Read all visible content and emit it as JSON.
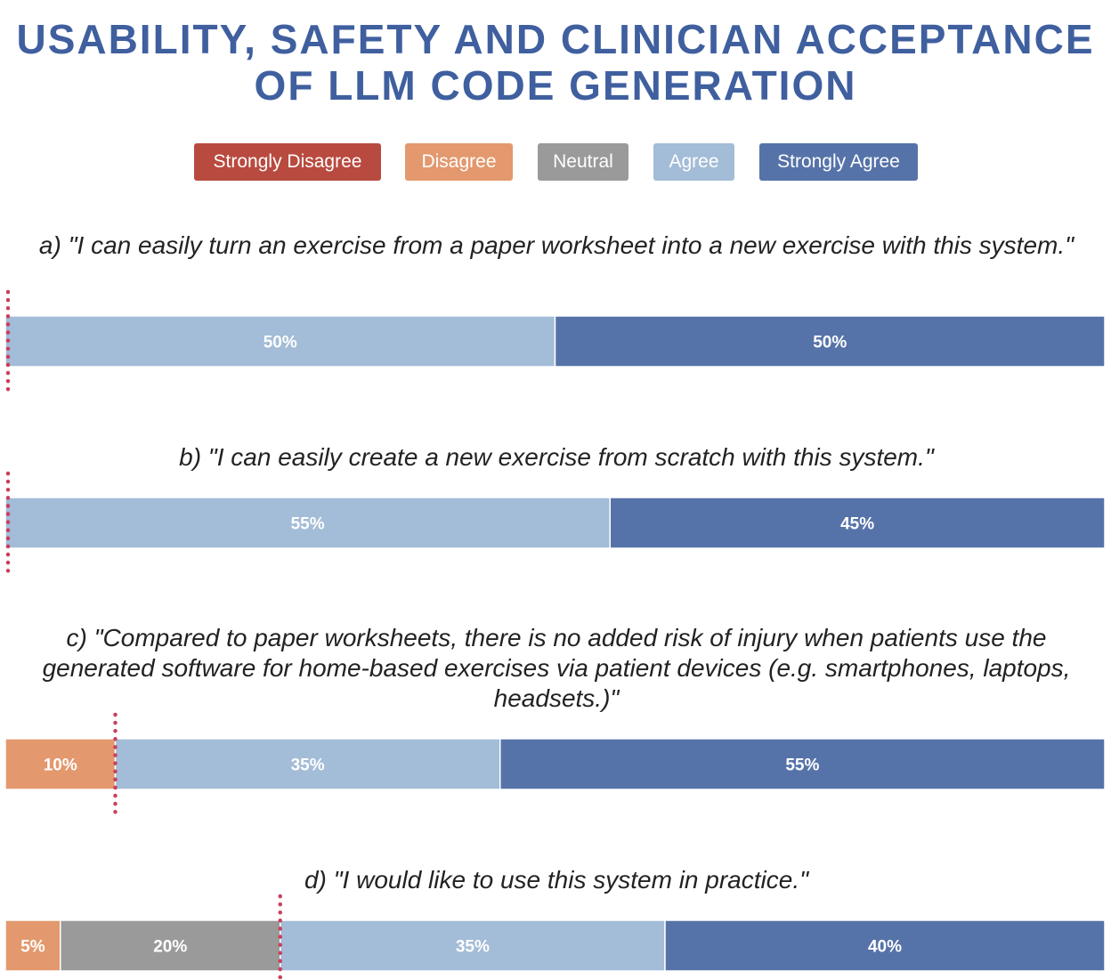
{
  "title": {
    "line1": "USABILITY, SAFETY AND CLINICIAN ACCEPTANCE",
    "line2": "OF LLM CODE GENERATION"
  },
  "legend": [
    {
      "label": "Strongly Disagree",
      "color": "#b94a3f"
    },
    {
      "label": "Disagree",
      "color": "#e3986d"
    },
    {
      "label": "Neutral",
      "color": "#9a9a9a"
    },
    {
      "label": "Agree",
      "color": "#a3bcd7"
    },
    {
      "label": "Strongly Agree",
      "color": "#5673a9"
    }
  ],
  "questions": {
    "a": "a) \"I can easily turn an exercise from a paper worksheet into a new exercise with this system.\"",
    "b": "b) \"I can easily create a new exercise from scratch with this system.\"",
    "c": "c) \"Compared to paper worksheets, there is no added risk of injury when patients use the generated software for home-based exercises via patient devices (e.g. smartphones, laptops, headsets.)\"",
    "d": "d) \"I would like to use this system in practice.\""
  },
  "chart_data": {
    "type": "bar",
    "orientation": "horizontal-stacked-100",
    "title": "USABILITY, SAFETY AND CLINICIAN ACCEPTANCE OF LLM CODE GENERATION",
    "categories": [
      "Strongly Disagree",
      "Disagree",
      "Neutral",
      "Agree",
      "Strongly Agree"
    ],
    "xlim": [
      0,
      100
    ],
    "unit": "%",
    "marker": "dotted line at the median boundary",
    "items": [
      {
        "id": "a",
        "values": [
          0,
          0,
          0,
          50,
          50
        ],
        "labels": [
          "",
          "",
          "",
          "50%",
          "50%"
        ],
        "median_marker": 0
      },
      {
        "id": "b",
        "values": [
          0,
          0,
          0,
          55,
          45
        ],
        "labels": [
          "",
          "",
          "",
          "55%",
          "45%"
        ],
        "median_marker": 0
      },
      {
        "id": "c",
        "values": [
          0,
          10,
          0,
          35,
          55
        ],
        "labels": [
          "",
          "10%",
          "",
          "35%",
          "55%"
        ],
        "median_marker": 10
      },
      {
        "id": "d",
        "values": [
          0,
          5,
          20,
          35,
          40
        ],
        "labels": [
          "",
          "5%",
          "20%",
          "35%",
          "40%"
        ],
        "median_marker": 25
      }
    ]
  }
}
